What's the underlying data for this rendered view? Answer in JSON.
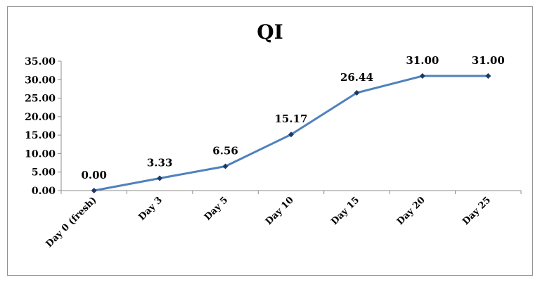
{
  "chart_data": {
    "type": "line",
    "title": "QI",
    "xlabel": "",
    "ylabel": "",
    "categories": [
      "Day 0 (fresh)",
      "Day 3",
      "Day 5",
      "Day 10",
      "Day 15",
      "Day 20",
      "Day 25"
    ],
    "series": [
      {
        "values": [
          0.0,
          3.33,
          6.56,
          15.17,
          26.44,
          31.0,
          31.0
        ],
        "data_labels": [
          "0.00",
          "3.33",
          "6.56",
          "15.17",
          "26.44",
          "31.00",
          "31.00"
        ]
      }
    ],
    "ylim": [
      0,
      35
    ],
    "yticks": [
      "0.00",
      "5.00",
      "10.00",
      "15.00",
      "20.00",
      "25.00",
      "30.00",
      "35.00"
    ],
    "grid": false,
    "legend": "none",
    "line_color": "#4f81bd",
    "marker_color": "#1f3864"
  }
}
